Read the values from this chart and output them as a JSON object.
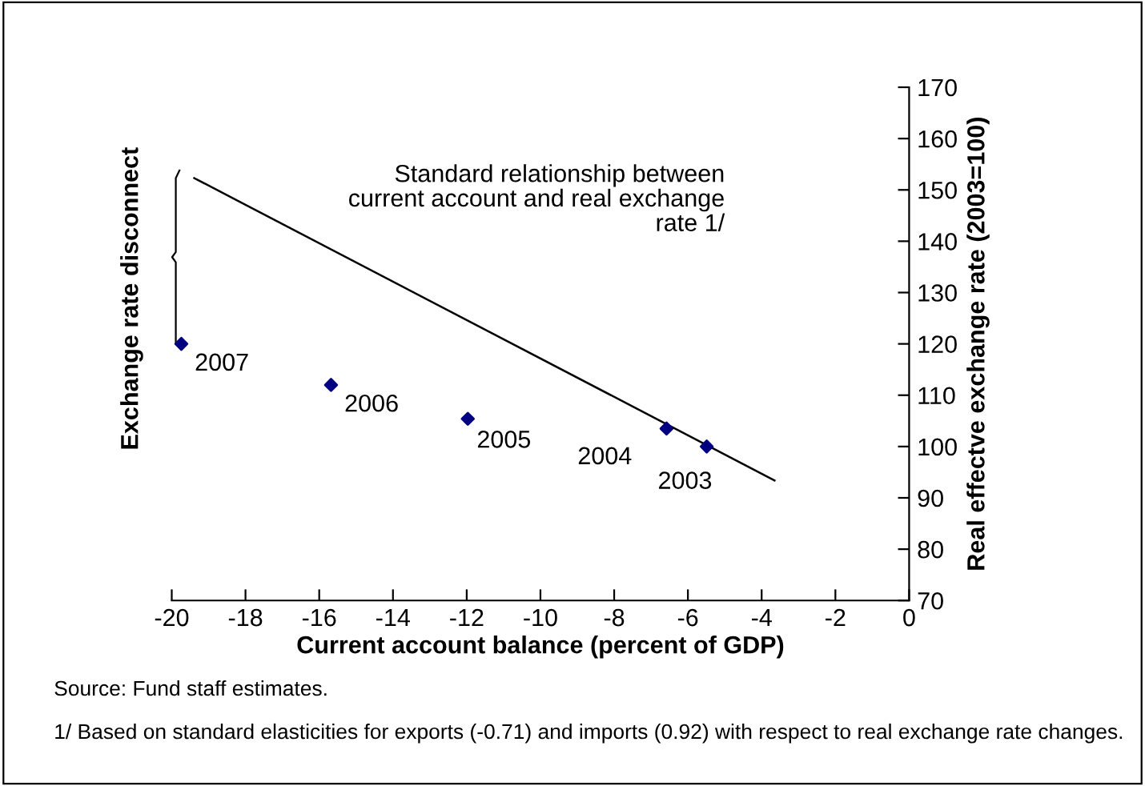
{
  "chart_data": {
    "type": "scatter",
    "xlabel": "Current account balance (percent of GDP)",
    "ylabel": "Real effectve exchange rate (2003=100)",
    "series": [
      {
        "color": "#000080",
        "marker": "diamond",
        "x": [
          -19.74,
          -15.68,
          -11.97,
          -6.58,
          -5.49
        ],
        "values": [
          120,
          112,
          105.4,
          103.5,
          100
        ]
      },
      {
        "type": "line",
        "color": "#000000",
        "line_style": "solid",
        "x": [
          -19.39,
          -3.65
        ],
        "values": [
          152.3,
          93.4
        ]
      }
    ],
    "xlim": [
      -20,
      0
    ],
    "xticks": [
      -20,
      -18,
      -16,
      -14,
      -12,
      -10,
      -8,
      -6,
      -4,
      -2,
      0
    ],
    "ylim": [
      70,
      170
    ],
    "yticks": [
      70,
      80,
      90,
      100,
      110,
      120,
      130,
      140,
      150,
      160,
      170
    ],
    "annotations": [
      {
        "text": "2007",
        "x": -19.74,
        "y": 120
      },
      {
        "text": "2006",
        "x": -15.68,
        "y": 112
      },
      {
        "text": "2005",
        "x": -11.97,
        "y": 105.4
      },
      {
        "text": "2004",
        "x": -6.58,
        "y": 103.5
      },
      {
        "text": "2003",
        "x": -5.49,
        "y": 100
      },
      "Standard relationship between\ncurrent account and real exchange\nrate 1/",
      "Exchange rate disconnect",
      "Source: Fund staff estimates.",
      "1/ Based on standard elasticities for exports (-0.71) and imports (0.92) with respect to real exchange rate changes."
    ]
  }
}
